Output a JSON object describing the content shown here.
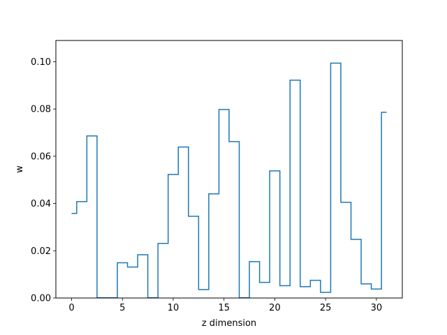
{
  "chart_data": {
    "type": "line",
    "drawstyle": "steps-mid",
    "title": "",
    "xlabel": "z dimension",
    "ylabel": "w",
    "xlim": [
      -1.55,
      32.55
    ],
    "ylim": [
      0,
      0.109
    ],
    "xticks": [
      0,
      5,
      10,
      15,
      20,
      25,
      30
    ],
    "xtick_labels": [
      "0",
      "5",
      "10",
      "15",
      "20",
      "25",
      "30"
    ],
    "yticks": [
      0,
      0.02,
      0.04,
      0.06,
      0.08,
      0.1
    ],
    "ytick_labels": [
      "0.00",
      "0.02",
      "0.04",
      "0.06",
      "0.08",
      "0.10"
    ],
    "grid": false,
    "series": [
      {
        "color": "#1f77b4",
        "x": [
          0,
          1,
          2,
          3,
          4,
          5,
          6,
          7,
          8,
          9,
          10,
          11,
          12,
          13,
          14,
          15,
          16,
          17,
          18,
          19,
          20,
          21,
          22,
          23,
          24,
          25,
          26,
          27,
          28,
          29,
          30,
          31
        ],
        "y": [
          0.0358,
          0.0408,
          0.0686,
          0.0001,
          0.0001,
          0.0149,
          0.0131,
          0.0183,
          0.0001,
          0.0231,
          0.0523,
          0.0639,
          0.0346,
          0.0036,
          0.0441,
          0.0798,
          0.0662,
          0.0001,
          0.0154,
          0.0066,
          0.0538,
          0.0052,
          0.0922,
          0.0048,
          0.0075,
          0.0024,
          0.0994,
          0.0405,
          0.0248,
          0.006,
          0.0038,
          0.0786
        ]
      }
    ]
  }
}
